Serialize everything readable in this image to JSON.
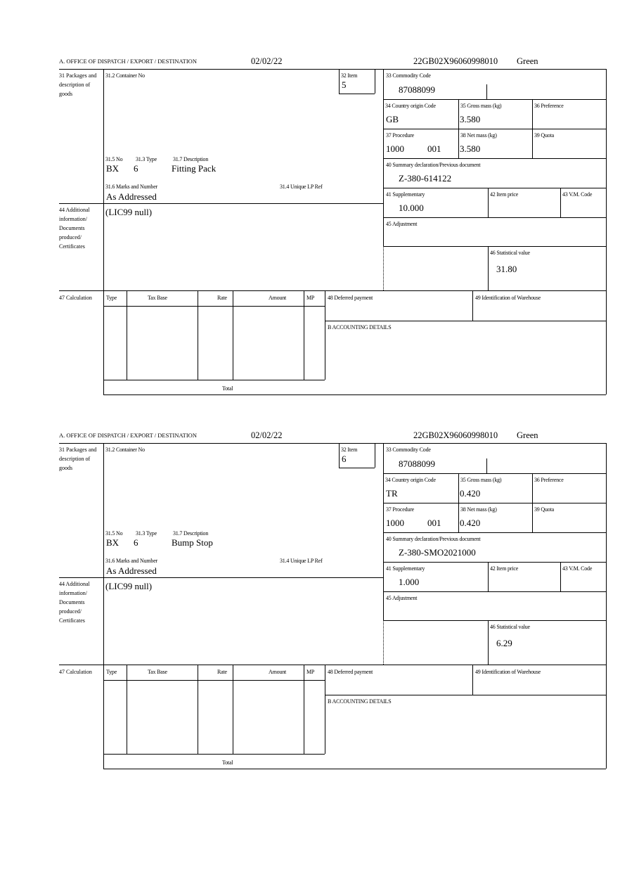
{
  "labels": {
    "office": "A.  OFFICE OF DISPATCH / EXPORT / DESTINATION",
    "packages": "31 Packages and description of goods",
    "container_no": "31.2 Container No",
    "item": "32 Item",
    "no": "31.5 No",
    "type": "31.3 Type",
    "description": "31.7 Description",
    "marks": "31.6 Marks and Number",
    "unique_lp": "31.4 Unique LP Ref",
    "additional": "44 Additional information/ Documents produced/ Certificates",
    "commodity": "33 Commodity Code",
    "country": "34 Country origin Code",
    "gross": "35 Gross mass (kg)",
    "preference": "36 Preference",
    "procedure": "37 Procedure",
    "net": "38 Net mass (kg)",
    "quota": "39 Quota",
    "summary": "40 Summary declaration/Previous document",
    "supplementary": "41 Supplementary",
    "item_price": "42 Item price",
    "vm_code": "43 V.M. Code",
    "adjustment": "45 Adjustment",
    "statistical": "46 Statistical value",
    "calculation": "47 Calculation",
    "calc_cols": [
      "Type",
      "Tax Base",
      "Rate",
      "Amount",
      "MP"
    ],
    "total": "Total",
    "deferred": "48 Deferred payment",
    "warehouse": "49 Identification of Warehouse",
    "accounting": "B ACCOUNTING DETAILS"
  },
  "forms": [
    {
      "date": "02/02/22",
      "reference": "22GB02X96060998010",
      "route": "Green",
      "item": "5",
      "pkg_kind": "BX",
      "pkg_count": "6",
      "description": "Fitting Pack",
      "marks": "As Addressed",
      "additional": "(LIC99 null)",
      "commodity": "87088099",
      "country": "GB",
      "gross": "3.580",
      "procedure": "1000",
      "procedure_add": "001",
      "net": "3.580",
      "summary": "Z-380-614122",
      "supplementary": "10.000",
      "statistical": "31.80"
    },
    {
      "date": "02/02/22",
      "reference": "22GB02X96060998010",
      "route": "Green",
      "item": "6",
      "pkg_kind": "BX",
      "pkg_count": "6",
      "description": "Bump Stop",
      "marks": "As Addressed",
      "additional": "(LIC99 null)",
      "commodity": "87088099",
      "country": "TR",
      "gross": "0.420",
      "procedure": "1000",
      "procedure_add": "001",
      "net": "0.420",
      "summary": "Z-380-SMO2021000",
      "supplementary": "1.000",
      "statistical": "6.29"
    }
  ]
}
